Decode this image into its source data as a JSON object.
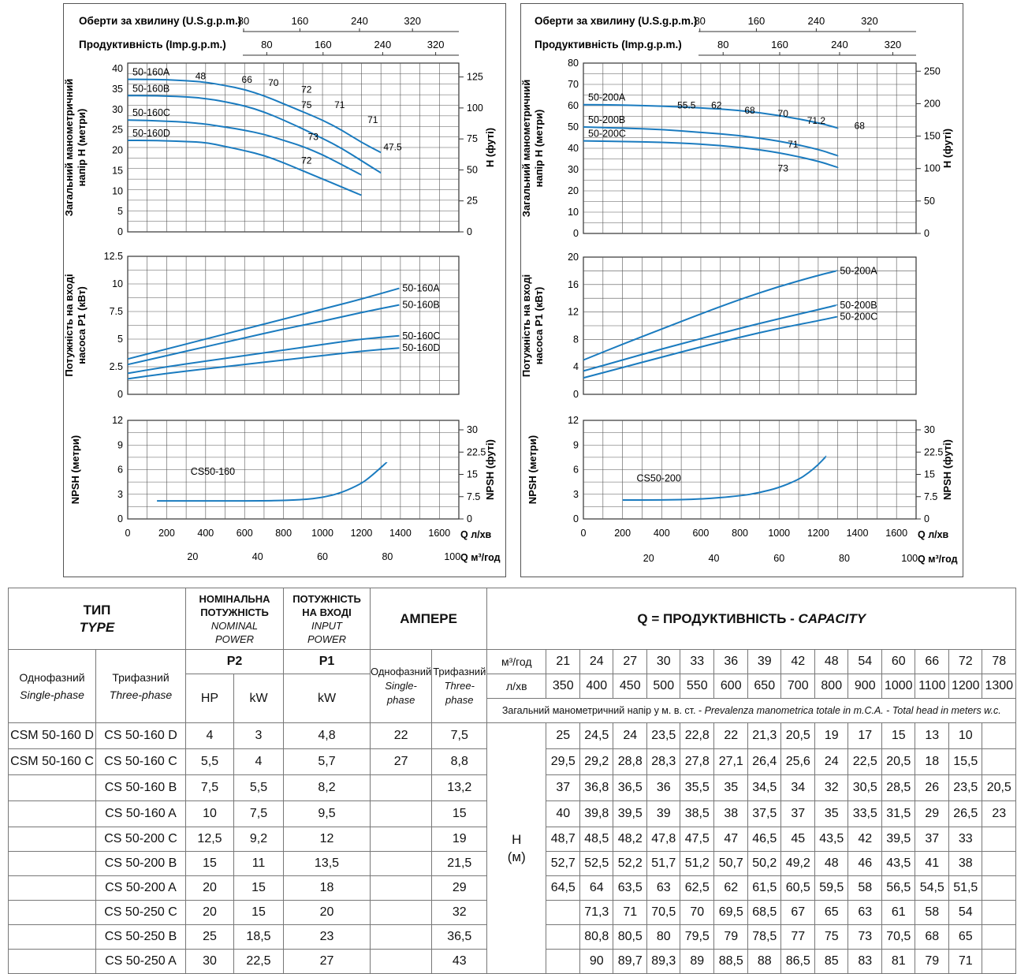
{
  "charts": [
    {
      "id": "left",
      "top_axis_1": {
        "label": "Оберти за хвилину (U.S.g.p.m.)",
        "ticks": [
          "80",
          "160",
          "240",
          "320"
        ]
      },
      "top_axis_2": {
        "label": "Продуктивність (Imp.g.p.m.)",
        "ticks": [
          "80",
          "160",
          "240",
          "320"
        ]
      },
      "head": {
        "ylabel_line1": "Загальний манометричний",
        "ylabel_line2": "напір H (метри)",
        "y2label": "H (футі)",
        "yticks": [
          "0",
          "5",
          "10",
          "15",
          "20",
          "25",
          "30",
          "35",
          "40"
        ],
        "y2ticks": [
          "0",
          "25",
          "50",
          "75",
          "100",
          "125"
        ],
        "ylim": [
          0,
          41.5
        ],
        "y2lim": [
          0,
          136.2
        ],
        "series": [
          {
            "name": "50-160A",
            "x": [
              0,
              100,
              200,
              300,
              400,
              500,
              600,
              700,
              800,
              900,
              1000,
              1100,
              1200,
              1300
            ],
            "y": [
              37.5,
              37.5,
              37.4,
              37.2,
              36.8,
              36.0,
              35.0,
              33.5,
              31.5,
              29.5,
              27.5,
              25.0,
              22.0,
              19.5
            ]
          },
          {
            "name": "50-160B",
            "x": [
              0,
              100,
              200,
              300,
              400,
              500,
              600,
              700,
              800,
              900,
              1000,
              1100,
              1200,
              1300
            ],
            "y": [
              33.5,
              33.5,
              33.4,
              33.2,
              32.8,
              32.0,
              31.0,
              29.5,
              27.5,
              25.3,
              23.0,
              20.5,
              17.5,
              14.5
            ]
          },
          {
            "name": "50-160C",
            "x": [
              0,
              100,
              200,
              300,
              400,
              500,
              600,
              700,
              800,
              900,
              1000,
              1100,
              1200
            ],
            "y": [
              27.5,
              27.4,
              27.2,
              27.0,
              26.5,
              25.8,
              25.0,
              24.0,
              22.5,
              21.0,
              19.0,
              16.5,
              14.0
            ]
          },
          {
            "name": "50-160D",
            "x": [
              0,
              100,
              200,
              300,
              400,
              500,
              600,
              700,
              800,
              900,
              1000,
              1100,
              1200
            ],
            "y": [
              22.5,
              22.5,
              22.4,
              22.2,
              22.0,
              21.0,
              20.0,
              18.8,
              17.0,
              15.0,
              13.0,
              11.0,
              9.0
            ]
          }
        ],
        "efficiency_labels": [
          "48",
          "66",
          "70",
          "72",
          "75",
          "73",
          "72",
          "71",
          "71",
          "47.5"
        ]
      },
      "power": {
        "ylabel_line1": "Потужність на вході",
        "ylabel_line2": "насоса P1 (кВт)",
        "yticks": [
          "0",
          "2.5",
          "5",
          "7.5",
          "10",
          "12.5"
        ],
        "ylim": [
          0,
          12.5
        ],
        "series": [
          {
            "name": "50-160A",
            "x": [
              0,
              200,
              400,
              600,
              800,
              1000,
              1200,
              1400
            ],
            "y": [
              3.2,
              4.1,
              5.0,
              5.9,
              6.8,
              7.7,
              8.6,
              9.6
            ]
          },
          {
            "name": "50-160B",
            "x": [
              0,
              200,
              400,
              600,
              800,
              1000,
              1200,
              1400
            ],
            "y": [
              2.7,
              3.5,
              4.3,
              5.1,
              5.9,
              6.6,
              7.4,
              8.1
            ]
          },
          {
            "name": "50-160C",
            "x": [
              0,
              200,
              400,
              600,
              800,
              1000,
              1200,
              1400
            ],
            "y": [
              1.9,
              2.5,
              3.0,
              3.5,
              4.0,
              4.5,
              5.0,
              5.3
            ]
          },
          {
            "name": "50-160D",
            "x": [
              0,
              200,
              400,
              600,
              800,
              1000,
              1200,
              1400
            ],
            "y": [
              1.4,
              1.9,
              2.3,
              2.7,
              3.1,
              3.5,
              3.9,
              4.2
            ]
          }
        ]
      },
      "npsh": {
        "ylabel": "NPSH (метри)",
        "y2label": "NPSH (футі)",
        "yticks": [
          "0",
          "3",
          "6",
          "9",
          "12"
        ],
        "y2ticks": [
          "0",
          "7.5",
          "15",
          "22.5",
          "30"
        ],
        "ylim": [
          0,
          12
        ],
        "series": [
          {
            "name": "CS50-160",
            "x": [
              150,
              300,
              500,
              700,
              800,
              900,
              1000,
              1100,
              1200,
              1250,
              1330
            ],
            "y": [
              2.2,
              2.2,
              2.2,
              2.2,
              2.25,
              2.35,
              2.6,
              3.2,
              4.3,
              5.2,
              6.9
            ]
          }
        ]
      },
      "xaxis": {
        "ticks": [
          "0",
          "200",
          "400",
          "600",
          "800",
          "1000",
          "1200",
          "1400",
          "1600"
        ],
        "xlim": [
          0,
          1700
        ],
        "unit": "Q л/хв",
        "ticks2": [
          "20",
          "40",
          "60",
          "80",
          "100"
        ],
        "unit2": "Q м³/год"
      }
    },
    {
      "id": "right",
      "top_axis_1": {
        "label": "Оберти за хвилину (U.S.g.p.m.)",
        "ticks": [
          "80",
          "160",
          "240",
          "320"
        ]
      },
      "top_axis_2": {
        "label": "Продуктивність (Imp.g.p.m.)",
        "ticks": [
          "80",
          "160",
          "240",
          "320"
        ]
      },
      "head": {
        "ylabel_line1": "Загальний манометричний",
        "ylabel_line2": "напір H (метри)",
        "y2label": "H (футі)",
        "yticks": [
          "0",
          "10",
          "20",
          "30",
          "40",
          "50",
          "60",
          "70",
          "80"
        ],
        "y2ticks": [
          "0",
          "50",
          "100",
          "150",
          "200",
          "250"
        ],
        "ylim": [
          0,
          80
        ],
        "y2lim": [
          0,
          262.5
        ],
        "series": [
          {
            "name": "50-200A",
            "x": [
              0,
              200,
              400,
              600,
              800,
              1000,
              1200,
              1300
            ],
            "y": [
              60.5,
              60.3,
              59.8,
              59.0,
              57.8,
              55.5,
              52.0,
              49.5
            ]
          },
          {
            "name": "50-200B",
            "x": [
              0,
              200,
              400,
              600,
              800,
              1000,
              1200,
              1300
            ],
            "y": [
              50.0,
              49.5,
              48.8,
              47.5,
              46.0,
              43.5,
              39.5,
              36.5
            ]
          },
          {
            "name": "50-200C",
            "x": [
              0,
              200,
              400,
              600,
              800,
              1000,
              1200,
              1300
            ],
            "y": [
              43.5,
              43.2,
              42.8,
              42.0,
              40.5,
              38.0,
              34.0,
              31.0
            ]
          }
        ],
        "efficiency_labels": [
          "55.5",
          "62",
          "68",
          "70",
          "71.2",
          "68",
          "71",
          "73"
        ]
      },
      "power": {
        "ylabel_line1": "Потужність на вході",
        "ylabel_line2": "насоса P1 (кВт)",
        "yticks": [
          "0",
          "4",
          "8",
          "12",
          "16",
          "20"
        ],
        "ylim": [
          0,
          20
        ],
        "series": [
          {
            "name": "50-200A",
            "x": [
              0,
              200,
              400,
              600,
              800,
              1000,
              1200,
              1300
            ],
            "y": [
              5.0,
              7.3,
              9.5,
              11.7,
              13.8,
              15.7,
              17.3,
              18.0
            ]
          },
          {
            "name": "50-200B",
            "x": [
              0,
              200,
              400,
              600,
              800,
              1000,
              1200,
              1300
            ],
            "y": [
              3.4,
              5.0,
              6.6,
              8.1,
              9.6,
              11.0,
              12.3,
              13.0
            ]
          },
          {
            "name": "50-200C",
            "x": [
              0,
              200,
              400,
              600,
              800,
              1000,
              1200,
              1300
            ],
            "y": [
              2.4,
              3.9,
              5.4,
              6.9,
              8.3,
              9.6,
              10.7,
              11.3
            ]
          }
        ]
      },
      "npsh": {
        "ylabel": "NPSH (метри)",
        "y2label": "NPSH (футі)",
        "yticks": [
          "0",
          "3",
          "6",
          "9",
          "12"
        ],
        "y2ticks": [
          "0",
          "7.5",
          "15",
          "22.5",
          "30"
        ],
        "ylim": [
          0,
          12
        ],
        "series": [
          {
            "name": "CS50-200",
            "x": [
              200,
              400,
              600,
              800,
              900,
              1000,
              1100,
              1150,
              1200,
              1240
            ],
            "y": [
              2.3,
              2.3,
              2.4,
              2.8,
              3.2,
              3.8,
              4.8,
              5.6,
              6.6,
              7.6
            ]
          }
        ]
      },
      "xaxis": {
        "ticks": [
          "0",
          "200",
          "400",
          "600",
          "800",
          "1000",
          "1200",
          "1400",
          "1600"
        ],
        "xlim": [
          0,
          1700
        ],
        "unit": "Q л/хв",
        "ticks2": [
          "20",
          "40",
          "60",
          "80",
          "100"
        ],
        "unit2": "Q м³/год"
      }
    }
  ],
  "table": {
    "type_header": "ТИП",
    "type_header_en": "TYPE",
    "nominal_power": [
      "НОМІНАЛЬНА",
      "ПОТУЖНІСТЬ"
    ],
    "nominal_power_en": [
      "NOMINAL",
      "POWER"
    ],
    "input_power": [
      "ПОТУЖНІСТЬ",
      "НА ВХОДІ"
    ],
    "input_power_en": [
      "INPUT",
      "POWER"
    ],
    "ampere": "АМПЕРЕ",
    "capacity_header": "Q = ПРОДУКТИВНІСТЬ - ",
    "capacity_header_en": "CAPACITY",
    "single_phase": "Однофазний",
    "single_phase_en": "Single-phase",
    "three_phase": "Трифазний",
    "three_phase_en": "Three-phase",
    "p2": "P2",
    "p1": "P1",
    "hp": "HP",
    "kw": "kW",
    "kw2": "kW",
    "amp_single": "Однофазний",
    "amp_single_en": [
      "Single-",
      "phase"
    ],
    "amp_three": "Трифазний",
    "amp_three_en": [
      "Three-",
      "phase"
    ],
    "unit_m3h": "м³/год",
    "unit_lmin": "л/хв",
    "q_m3h": [
      "21",
      "24",
      "27",
      "30",
      "33",
      "36",
      "39",
      "42",
      "48",
      "54",
      "60",
      "66",
      "72",
      "78"
    ],
    "q_lmin": [
      "350",
      "400",
      "450",
      "500",
      "550",
      "600",
      "650",
      "700",
      "800",
      "900",
      "1000",
      "1100",
      "1200",
      "1300"
    ],
    "head_note_prefix": "Загальний манометричний напір у м. в. ст. - ",
    "head_note_it": "Prevalenza manometrica totale in m.C.A.",
    "head_note_mid": " - ",
    "head_note_en": "Total head in meters w.c.",
    "h_label": "H",
    "h_unit": "(м)",
    "rows": [
      {
        "single": "CSM 50-160 D",
        "three": "CS 50-160 D",
        "hp": "4",
        "kw": "3",
        "p1": "4,8",
        "amp1": "22",
        "amp3": "7,5",
        "h": [
          "25",
          "24,5",
          "24",
          "23,5",
          "22,8",
          "22",
          "21,3",
          "20,5",
          "19",
          "17",
          "15",
          "13",
          "10",
          ""
        ]
      },
      {
        "single": "CSM 50-160 C",
        "three": "CS 50-160 C",
        "hp": "5,5",
        "kw": "4",
        "p1": "5,7",
        "amp1": "27",
        "amp3": "8,8",
        "h": [
          "29,5",
          "29,2",
          "28,8",
          "28,3",
          "27,8",
          "27,1",
          "26,4",
          "25,6",
          "24",
          "22,5",
          "20,5",
          "18",
          "15,5",
          ""
        ]
      },
      {
        "single": "",
        "three": "CS 50-160 B",
        "hp": "7,5",
        "kw": "5,5",
        "p1": "8,2",
        "amp1": "",
        "amp3": "13,2",
        "h": [
          "37",
          "36,8",
          "36,5",
          "36",
          "35,5",
          "35",
          "34,5",
          "34",
          "32",
          "30,5",
          "28,5",
          "26",
          "23,5",
          "20,5"
        ]
      },
      {
        "single": "",
        "three": "CS 50-160 A",
        "hp": "10",
        "kw": "7,5",
        "p1": "9,5",
        "amp1": "",
        "amp3": "15",
        "h": [
          "40",
          "39,8",
          "39,5",
          "39",
          "38,5",
          "38",
          "37,5",
          "37",
          "35",
          "33,5",
          "31,5",
          "29",
          "26,5",
          "23"
        ]
      },
      {
        "single": "",
        "three": "CS 50-200 C",
        "hp": "12,5",
        "kw": "9,2",
        "p1": "12",
        "amp1": "",
        "amp3": "19",
        "h": [
          "48,7",
          "48,5",
          "48,2",
          "47,8",
          "47,5",
          "47",
          "46,5",
          "45",
          "43,5",
          "42",
          "39,5",
          "37",
          "33",
          ""
        ]
      },
      {
        "single": "",
        "three": "CS 50-200 B",
        "hp": "15",
        "kw": "11",
        "p1": "13,5",
        "amp1": "",
        "amp3": "21,5",
        "h": [
          "52,7",
          "52,5",
          "52,2",
          "51,7",
          "51,2",
          "50,7",
          "50,2",
          "49,2",
          "48",
          "46",
          "43,5",
          "41",
          "38",
          ""
        ]
      },
      {
        "single": "",
        "three": "CS 50-200 A",
        "hp": "20",
        "kw": "15",
        "p1": "18",
        "amp1": "",
        "amp3": "29",
        "h": [
          "64,5",
          "64",
          "63,5",
          "63",
          "62,5",
          "62",
          "61,5",
          "60,5",
          "59,5",
          "58",
          "56,5",
          "54,5",
          "51,5",
          ""
        ]
      },
      {
        "single": "",
        "three": "CS 50-250 C",
        "hp": "20",
        "kw": "15",
        "p1": "20",
        "amp1": "",
        "amp3": "32",
        "h": [
          "",
          "71,3",
          "71",
          "70,5",
          "70",
          "69,5",
          "68,5",
          "67",
          "65",
          "63",
          "61",
          "58",
          "54",
          ""
        ]
      },
      {
        "single": "",
        "three": "CS 50-250 B",
        "hp": "25",
        "kw": "18,5",
        "p1": "23",
        "amp1": "",
        "amp3": "36,5",
        "h": [
          "",
          "80,8",
          "80,5",
          "80",
          "79,5",
          "79",
          "78,5",
          "77",
          "75",
          "73",
          "70,5",
          "68",
          "65",
          ""
        ]
      },
      {
        "single": "",
        "three": "CS 50-250 A",
        "hp": "30",
        "kw": "22,5",
        "p1": "27",
        "amp1": "",
        "amp3": "43",
        "h": [
          "",
          "90",
          "89,7",
          "89,3",
          "89",
          "88,5",
          "88",
          "86,5",
          "85",
          "83",
          "81",
          "79",
          "71",
          ""
        ]
      }
    ]
  },
  "colors": {
    "curve": "#1a7bbf",
    "grid": "#555555",
    "frame": "#333333"
  }
}
